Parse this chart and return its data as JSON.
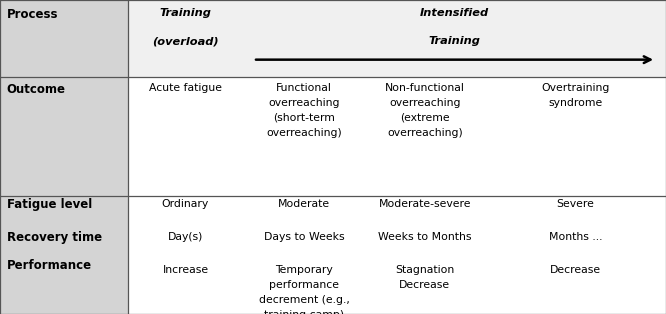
{
  "fig_width": 6.66,
  "fig_height": 3.14,
  "dpi": 100,
  "bg_color": "#ffffff",
  "left_col_bg": "#d4d4d4",
  "right_bg": "#f0f0f0",
  "border_color": "#555555",
  "col_bounds": [
    0.0,
    0.192,
    0.365,
    0.548,
    0.728,
    1.0
  ],
  "row_bounds": [
    1.0,
    0.755,
    0.375,
    0.0
  ],
  "font_size_header": 8.2,
  "font_size_body": 7.8,
  "font_size_label": 8.5,
  "process_label": "Process",
  "outcome_label": "Outcome",
  "fatigue_label": "Fatigue level",
  "recovery_label": "Recovery time",
  "performance_label": "Performance",
  "training_line1": "Training",
  "training_line2": "(overload)",
  "intensified_line1": "Intensified",
  "intensified_line2": "Training",
  "outcome_col1": "Acute fatigue",
  "outcome_col2": "Functional\noverreaching\n(short-term\noverreaching)",
  "outcome_col3": "Non-functional\noverreaching\n(extreme\noverreaching)",
  "outcome_col4": "Overtraining\nsyndrome",
  "fatigue_col1": "Ordinary",
  "fatigue_col2": "Moderate",
  "fatigue_col3": "Moderate-severe",
  "fatigue_col4": "Severe",
  "recovery_col1": "Day(s)",
  "recovery_col2": "Days to Weeks",
  "recovery_col3": "Weeks to Months",
  "recovery_col4": "Months ...",
  "perf_col1": "Increase",
  "perf_col2": "Temporary\nperformance\ndecrement (e.g.,\ntraining camp)",
  "perf_col3": "Stagnation\nDecrease",
  "perf_col4": "Decrease"
}
